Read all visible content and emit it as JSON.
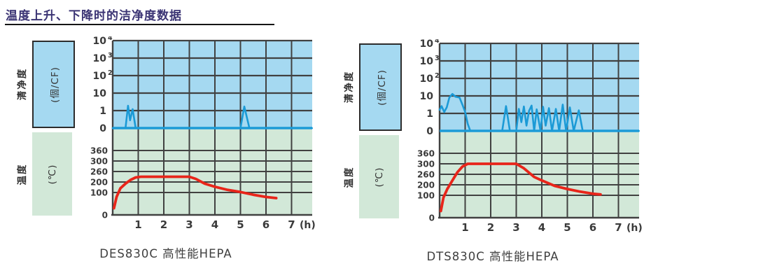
{
  "title": {
    "text": "温度上升、下降时的洁净度数据"
  },
  "colors": {
    "title": "#3b3474",
    "rule": "#151515",
    "blue_bg": "#a5d9f1",
    "green_bg": "#d2e8d8",
    "grid": "#414141",
    "blue_line": "#1b9ad6",
    "red_line": "#e8251a",
    "tick_text": "#3a3a3a",
    "caption_text": "#3f3f3f"
  },
  "axes": {
    "clean_label": "清净度",
    "clean_unit": "(個/CF)",
    "temp_label": "温度",
    "temp_unit": "(℃)",
    "clean_ticks": [
      {
        "t": "10",
        "s": "4"
      },
      {
        "t": "10",
        "s": "3"
      },
      {
        "t": "10",
        "s": "2"
      },
      {
        "t": "10",
        "s": ""
      },
      {
        "t": "1",
        "s": ""
      },
      {
        "t": "0",
        "s": ""
      }
    ],
    "temp_ticks": [
      "360",
      "300",
      "260",
      "200",
      "100",
      "0"
    ],
    "x_ticks": [
      "1",
      "2",
      "3",
      "4",
      "5",
      "6",
      "7"
    ],
    "x_unit": "(h)"
  },
  "chart_data": [
    {
      "type": "line",
      "caption": "DES830C  高性能HEPA",
      "x_unit": "h",
      "x_range": [
        0,
        7.8
      ],
      "cleanliness_series": {
        "name": "清净度",
        "unit": "個/CF",
        "scale": "log above 1, zero baseline",
        "axis_ticks": [
          "10^4",
          "10^3",
          "10^2",
          "10",
          "1",
          "0"
        ],
        "points": [
          [
            0,
            0
          ],
          [
            0.5,
            0
          ],
          [
            0.6,
            1.9
          ],
          [
            0.68,
            0.45
          ],
          [
            0.78,
            1.2
          ],
          [
            0.9,
            0
          ],
          [
            5.0,
            0
          ],
          [
            5.15,
            1.7
          ],
          [
            5.35,
            0
          ],
          [
            7.8,
            0
          ]
        ]
      },
      "temperature_series": {
        "name": "温度",
        "unit": "℃",
        "axis_ticks": [
          360,
          300,
          260,
          200,
          100,
          0
        ],
        "points": [
          [
            0.05,
            30
          ],
          [
            0.15,
            80
          ],
          [
            0.3,
            140
          ],
          [
            0.5,
            185
          ],
          [
            0.7,
            212
          ],
          [
            0.9,
            226
          ],
          [
            1.1,
            230
          ],
          [
            3.0,
            230
          ],
          [
            3.25,
            218
          ],
          [
            3.6,
            185
          ],
          [
            4.0,
            155
          ],
          [
            4.5,
            125
          ],
          [
            5.0,
            105
          ],
          [
            5.5,
            90
          ],
          [
            6.0,
            80
          ],
          [
            6.4,
            75
          ]
        ]
      }
    },
    {
      "type": "line",
      "caption": "DTS830C  高性能HEPA",
      "x_unit": "h",
      "x_range": [
        0,
        7.8
      ],
      "cleanliness_series": {
        "name": "清净度",
        "unit": "個/CF",
        "scale": "log above 1, zero baseline",
        "axis_ticks": [
          "10^4",
          "10^3",
          "10^2",
          "10",
          "1",
          "0"
        ],
        "points": [
          [
            0,
            1.6
          ],
          [
            0.08,
            2.6
          ],
          [
            0.18,
            1.2
          ],
          [
            0.28,
            2.2
          ],
          [
            0.38,
            8
          ],
          [
            0.5,
            13
          ],
          [
            0.62,
            9
          ],
          [
            0.78,
            8
          ],
          [
            0.9,
            3
          ],
          [
            1.0,
            1.2
          ],
          [
            1.1,
            0.4
          ],
          [
            1.2,
            0
          ],
          [
            2.45,
            0
          ],
          [
            2.6,
            2.6
          ],
          [
            2.75,
            0
          ],
          [
            3.0,
            0
          ],
          [
            3.1,
            1.8
          ],
          [
            3.2,
            0.5
          ],
          [
            3.3,
            2.5
          ],
          [
            3.4,
            0.3
          ],
          [
            3.5,
            1.4
          ],
          [
            3.6,
            2.8
          ],
          [
            3.7,
            0
          ],
          [
            3.8,
            1.7
          ],
          [
            3.95,
            0
          ],
          [
            4.05,
            2.4
          ],
          [
            4.15,
            0.3
          ],
          [
            4.28,
            2.0
          ],
          [
            4.4,
            0
          ],
          [
            4.55,
            1.8
          ],
          [
            4.68,
            0
          ],
          [
            4.82,
            3.2
          ],
          [
            4.95,
            0
          ],
          [
            5.1,
            2.2
          ],
          [
            5.25,
            0
          ],
          [
            5.45,
            1.5
          ],
          [
            5.6,
            0
          ],
          [
            7.8,
            0
          ]
        ]
      },
      "temperature_series": {
        "name": "温度",
        "unit": "℃",
        "axis_ticks": [
          360,
          300,
          260,
          200,
          100,
          0
        ],
        "points": [
          [
            0.05,
            30
          ],
          [
            0.15,
            90
          ],
          [
            0.3,
            160
          ],
          [
            0.5,
            225
          ],
          [
            0.7,
            268
          ],
          [
            0.9,
            290
          ],
          [
            1.1,
            300
          ],
          [
            3.0,
            300
          ],
          [
            3.3,
            283
          ],
          [
            3.7,
            245
          ],
          [
            4.0,
            225
          ],
          [
            4.5,
            190
          ],
          [
            5.0,
            160
          ],
          [
            5.5,
            135
          ],
          [
            6.0,
            115
          ],
          [
            6.3,
            108
          ]
        ]
      }
    }
  ]
}
